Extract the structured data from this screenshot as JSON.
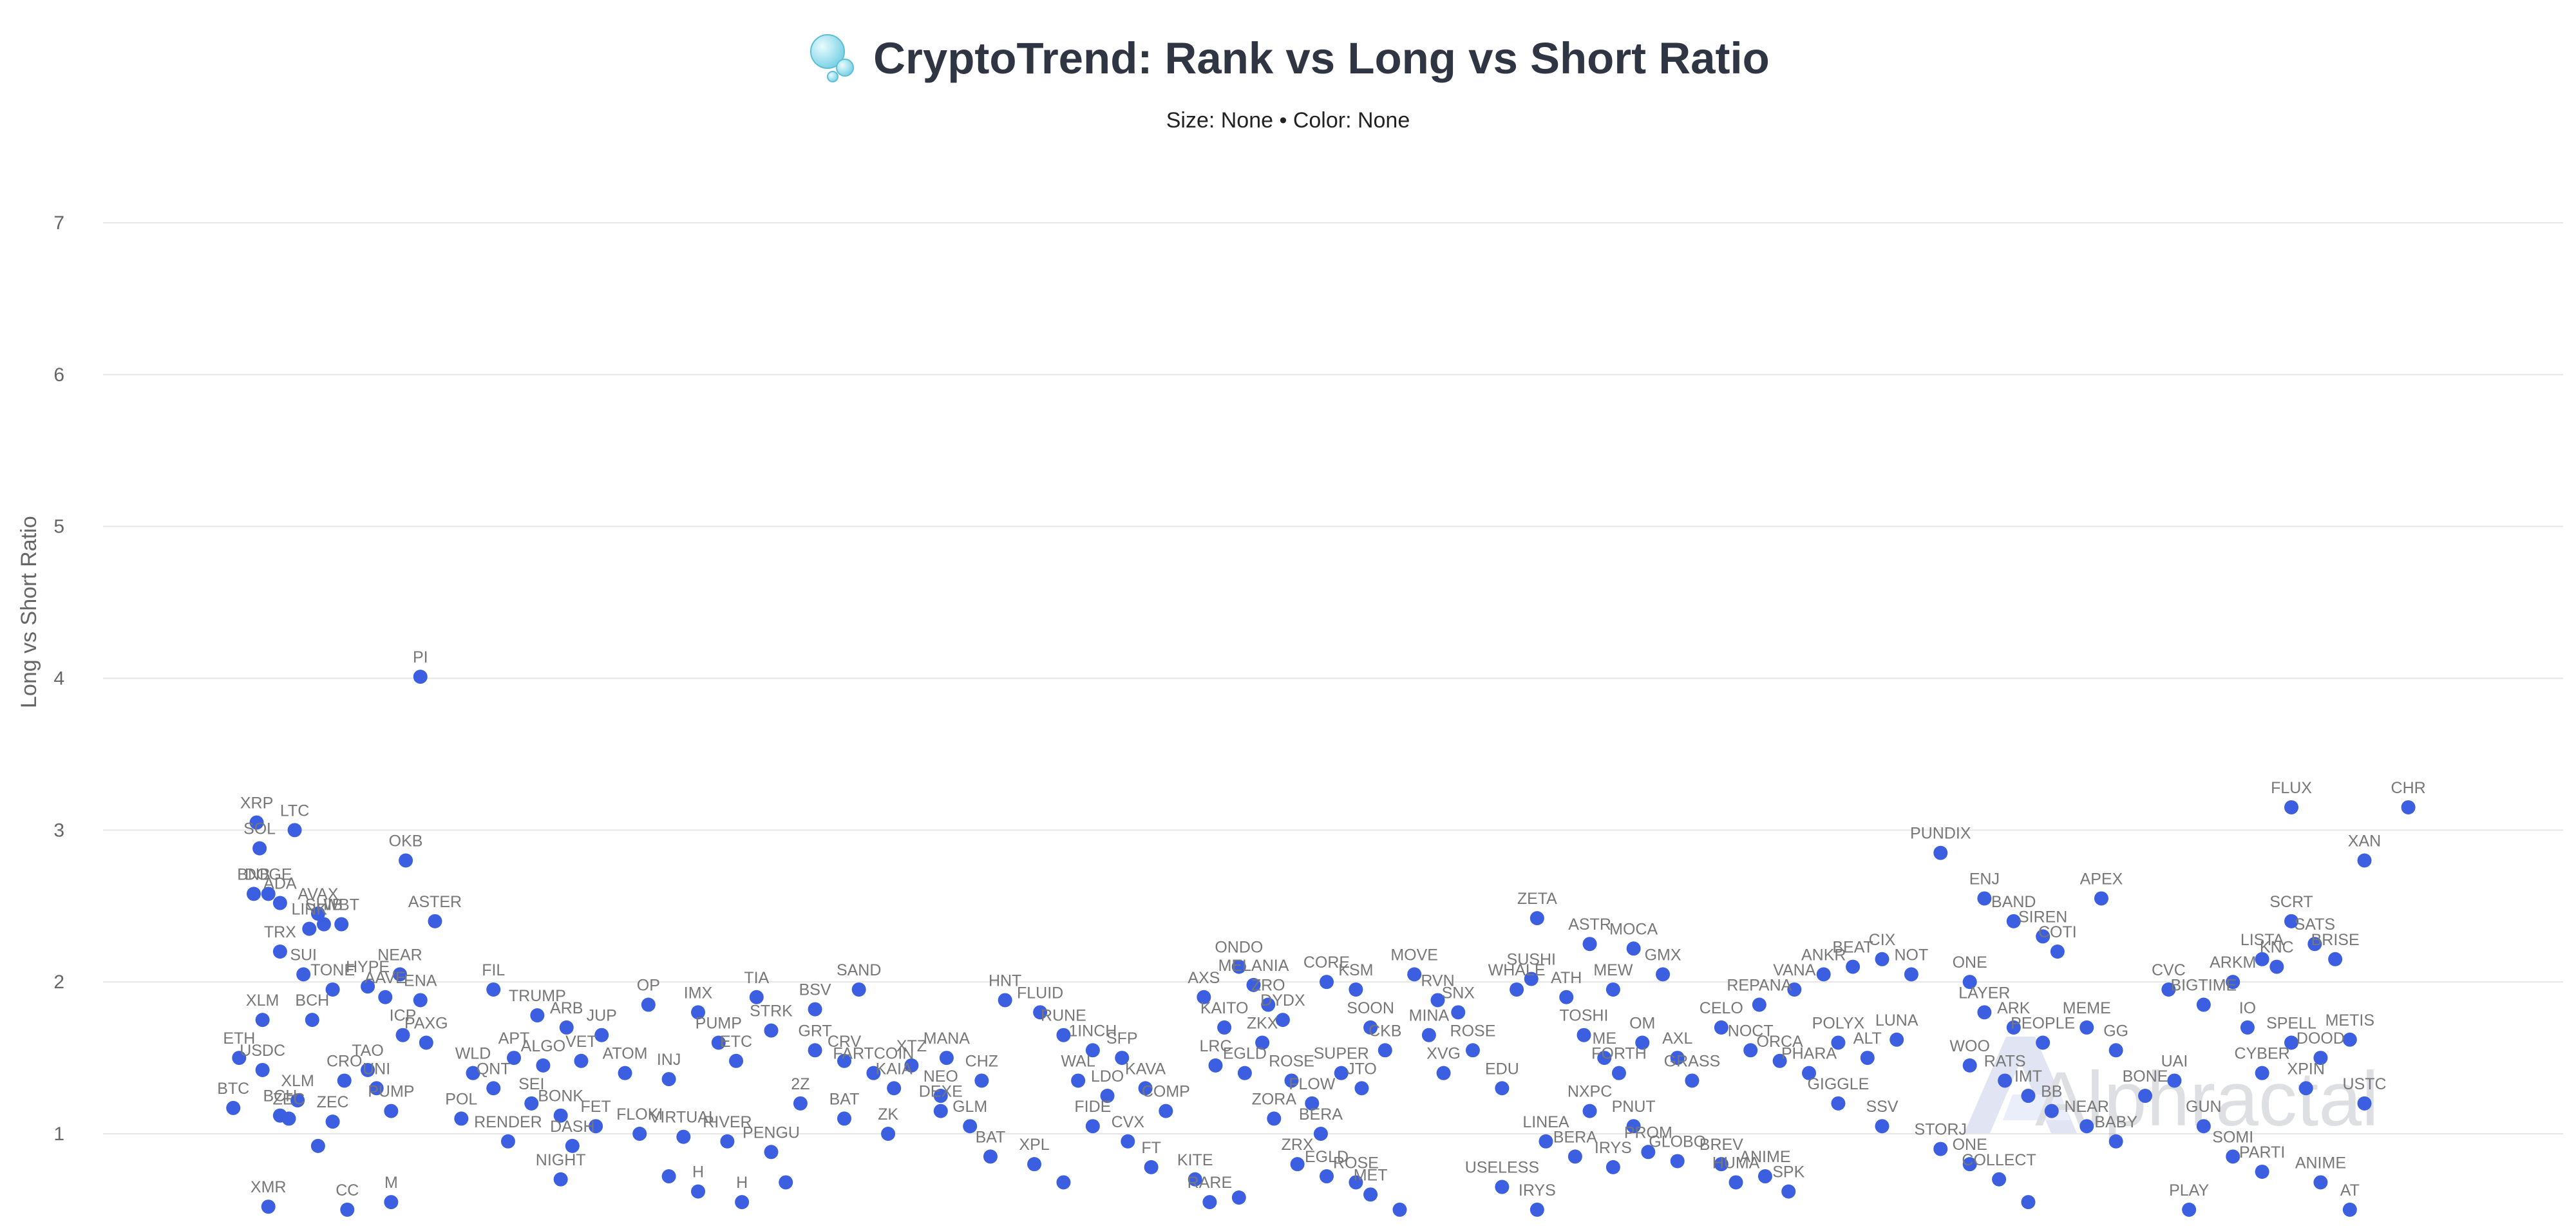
{
  "title": "CryptoTrend: Rank vs Long vs Short Ratio",
  "subtitle": "Size: None • Color: None",
  "watermark": "Alphractal",
  "colors": {
    "point": "#3b5fe0",
    "grid": "#e6e6e6",
    "title": "#2f3542",
    "bubble": "#7fd3e6"
  },
  "icons": {
    "title_icon": "bubbles-icon",
    "watermark_logo": "alphractal-logo"
  },
  "chart_data": {
    "type": "scatter",
    "title": "CryptoTrend: Rank vs Long vs Short Ratio",
    "subtitle": "Size: None • Color: None",
    "xlabel": "",
    "ylabel": "Long vs Short Ratio",
    "x_axis_visible": false,
    "xlim": [
      0,
      760
    ],
    "ylim": [
      0.4,
      7.5
    ],
    "yticks": [
      1,
      2,
      3,
      4,
      5,
      6,
      7
    ],
    "grid": true,
    "legend": "none",
    "points": [
      {
        "x": 14,
        "y": 3.05,
        "label": "XRP"
      },
      {
        "x": 15,
        "y": 2.88,
        "label": "SOL"
      },
      {
        "x": 13,
        "y": 2.58,
        "label": "BNB"
      },
      {
        "x": 18,
        "y": 2.58,
        "label": "DOGE"
      },
      {
        "x": 22,
        "y": 2.52,
        "label": "ADA"
      },
      {
        "x": 35,
        "y": 2.45,
        "label": "AVAX"
      },
      {
        "x": 27,
        "y": 3.0,
        "label": "LTC"
      },
      {
        "x": 37,
        "y": 2.38,
        "label": "SHIB"
      },
      {
        "x": 43,
        "y": 2.38,
        "label": "WBT"
      },
      {
        "x": 32,
        "y": 2.35,
        "label": "LINK"
      },
      {
        "x": 70,
        "y": 4.01,
        "label": "PI"
      },
      {
        "x": 65,
        "y": 2.8,
        "label": "OKB"
      },
      {
        "x": 75,
        "y": 2.4,
        "label": "ASTER"
      },
      {
        "x": 22,
        "y": 2.2,
        "label": "TRX"
      },
      {
        "x": 30,
        "y": 2.05,
        "label": "SUI"
      },
      {
        "x": 40,
        "y": 1.95,
        "label": "TONE"
      },
      {
        "x": 52,
        "y": 1.97,
        "label": "HYPE"
      },
      {
        "x": 63,
        "y": 2.05,
        "label": "NEAR"
      },
      {
        "x": 58,
        "y": 1.9,
        "label": "AAVE"
      },
      {
        "x": 70,
        "y": 1.88,
        "label": "ENA"
      },
      {
        "x": 16,
        "y": 1.75,
        "label": "XLM"
      },
      {
        "x": 33,
        "y": 1.75,
        "label": "BCH"
      },
      {
        "x": 64,
        "y": 1.65,
        "label": "ICP"
      },
      {
        "x": 72,
        "y": 1.6,
        "label": "PAXG"
      },
      {
        "x": 8,
        "y": 1.5,
        "label": "ETH"
      },
      {
        "x": 16,
        "y": 1.42,
        "label": "USDC"
      },
      {
        "x": 52,
        "y": 1.42,
        "label": "TAO"
      },
      {
        "x": 44,
        "y": 1.35,
        "label": "CRO"
      },
      {
        "x": 55,
        "y": 1.3,
        "label": "UNI"
      },
      {
        "x": 28,
        "y": 1.22,
        "label": "XLM"
      },
      {
        "x": 6,
        "y": 1.17,
        "label": "BTC"
      },
      {
        "x": 22,
        "y": 1.12,
        "label": "BCH"
      },
      {
        "x": 40,
        "y": 1.08,
        "label": "ZEC"
      },
      {
        "x": 60,
        "y": 1.15,
        "label": "PUMP"
      },
      {
        "x": 84,
        "y": 1.1,
        "label": "POL"
      },
      {
        "x": 25,
        "y": 1.1,
        "label": "ZEC"
      },
      {
        "x": 35,
        "y": 0.92,
        "label": ""
      },
      {
        "x": 18,
        "y": 0.52,
        "label": "XMR"
      },
      {
        "x": 45,
        "y": 0.5,
        "label": "CC"
      },
      {
        "x": 60,
        "y": 0.55,
        "label": "M"
      },
      {
        "x": 95,
        "y": 1.95,
        "label": "FIL"
      },
      {
        "x": 110,
        "y": 1.78,
        "label": "TRUMP"
      },
      {
        "x": 120,
        "y": 1.7,
        "label": "ARB"
      },
      {
        "x": 132,
        "y": 1.65,
        "label": "JUP"
      },
      {
        "x": 148,
        "y": 1.85,
        "label": "OP"
      },
      {
        "x": 165,
        "y": 1.8,
        "label": "IMX"
      },
      {
        "x": 185,
        "y": 1.9,
        "label": "TIA"
      },
      {
        "x": 190,
        "y": 1.68,
        "label": "STRK"
      },
      {
        "x": 172,
        "y": 1.6,
        "label": "PUMP"
      },
      {
        "x": 102,
        "y": 1.5,
        "label": "APT"
      },
      {
        "x": 112,
        "y": 1.45,
        "label": "ALGO"
      },
      {
        "x": 125,
        "y": 1.48,
        "label": "VET"
      },
      {
        "x": 140,
        "y": 1.4,
        "label": "ATOM"
      },
      {
        "x": 155,
        "y": 1.36,
        "label": "INJ"
      },
      {
        "x": 178,
        "y": 1.48,
        "label": "ETC"
      },
      {
        "x": 88,
        "y": 1.4,
        "label": "WLD"
      },
      {
        "x": 95,
        "y": 1.3,
        "label": "QNT"
      },
      {
        "x": 108,
        "y": 1.2,
        "label": "SEI"
      },
      {
        "x": 118,
        "y": 1.12,
        "label": "BONK"
      },
      {
        "x": 130,
        "y": 1.05,
        "label": "FET"
      },
      {
        "x": 145,
        "y": 1.0,
        "label": "FLOKI"
      },
      {
        "x": 160,
        "y": 0.98,
        "label": "VIRTUAL"
      },
      {
        "x": 175,
        "y": 0.95,
        "label": "RIVER"
      },
      {
        "x": 190,
        "y": 0.88,
        "label": "PENGU"
      },
      {
        "x": 100,
        "y": 0.95,
        "label": "RENDER"
      },
      {
        "x": 122,
        "y": 0.92,
        "label": "DASH"
      },
      {
        "x": 118,
        "y": 0.7,
        "label": "NIGHT"
      },
      {
        "x": 155,
        "y": 0.72,
        "label": ""
      },
      {
        "x": 165,
        "y": 0.62,
        "label": "H"
      },
      {
        "x": 180,
        "y": 0.55,
        "label": "H"
      },
      {
        "x": 195,
        "y": 0.68,
        "label": ""
      },
      {
        "x": 220,
        "y": 1.95,
        "label": "SAND"
      },
      {
        "x": 205,
        "y": 1.82,
        "label": "BSV"
      },
      {
        "x": 205,
        "y": 1.55,
        "label": "GRT"
      },
      {
        "x": 215,
        "y": 1.48,
        "label": "CRV"
      },
      {
        "x": 225,
        "y": 1.4,
        "label": "FARTCOIN"
      },
      {
        "x": 238,
        "y": 1.45,
        "label": "XTZ"
      },
      {
        "x": 250,
        "y": 1.5,
        "label": "MANA"
      },
      {
        "x": 232,
        "y": 1.3,
        "label": "KAIA"
      },
      {
        "x": 248,
        "y": 1.25,
        "label": "NEO"
      },
      {
        "x": 262,
        "y": 1.35,
        "label": "CHZ"
      },
      {
        "x": 200,
        "y": 1.2,
        "label": "2Z"
      },
      {
        "x": 215,
        "y": 1.1,
        "label": "BAT"
      },
      {
        "x": 230,
        "y": 1.0,
        "label": "ZK"
      },
      {
        "x": 248,
        "y": 1.15,
        "label": "DEXE"
      },
      {
        "x": 258,
        "y": 1.05,
        "label": "GLM"
      },
      {
        "x": 265,
        "y": 0.85,
        "label": "BAT"
      },
      {
        "x": 280,
        "y": 0.8,
        "label": "XPL"
      },
      {
        "x": 290,
        "y": 0.68,
        "label": ""
      },
      {
        "x": 270,
        "y": 1.88,
        "label": "HNT"
      },
      {
        "x": 282,
        "y": 1.8,
        "label": "FLUID"
      },
      {
        "x": 290,
        "y": 1.65,
        "label": "RUNE"
      },
      {
        "x": 300,
        "y": 1.55,
        "label": "1INCH"
      },
      {
        "x": 310,
        "y": 1.5,
        "label": "SFP"
      },
      {
        "x": 295,
        "y": 1.35,
        "label": "WAL"
      },
      {
        "x": 305,
        "y": 1.25,
        "label": "LDO"
      },
      {
        "x": 318,
        "y": 1.3,
        "label": "KAVA"
      },
      {
        "x": 325,
        "y": 1.15,
        "label": "COMP"
      },
      {
        "x": 300,
        "y": 1.05,
        "label": "FIDE"
      },
      {
        "x": 312,
        "y": 0.95,
        "label": "CVX"
      },
      {
        "x": 320,
        "y": 0.78,
        "label": "FT"
      },
      {
        "x": 335,
        "y": 0.7,
        "label": "KITE"
      },
      {
        "x": 340,
        "y": 0.55,
        "label": "RARE"
      },
      {
        "x": 350,
        "y": 0.58,
        "label": ""
      },
      {
        "x": 338,
        "y": 1.9,
        "label": "AXS"
      },
      {
        "x": 350,
        "y": 2.1,
        "label": "ONDO"
      },
      {
        "x": 355,
        "y": 1.98,
        "label": "MELANIA"
      },
      {
        "x": 360,
        "y": 1.85,
        "label": "ZRO"
      },
      {
        "x": 345,
        "y": 1.7,
        "label": "KAITO"
      },
      {
        "x": 365,
        "y": 1.75,
        "label": "DYDX"
      },
      {
        "x": 358,
        "y": 1.6,
        "label": "ZKX"
      },
      {
        "x": 342,
        "y": 1.45,
        "label": "LRC"
      },
      {
        "x": 352,
        "y": 1.4,
        "label": "EGLD"
      },
      {
        "x": 368,
        "y": 1.35,
        "label": "ROSE"
      },
      {
        "x": 375,
        "y": 1.2,
        "label": "FLOW"
      },
      {
        "x": 362,
        "y": 1.1,
        "label": "ZORA"
      },
      {
        "x": 378,
        "y": 1.0,
        "label": "BERA"
      },
      {
        "x": 380,
        "y": 2.0,
        "label": "CORE"
      },
      {
        "x": 390,
        "y": 1.95,
        "label": "KSM"
      },
      {
        "x": 395,
        "y": 1.7,
        "label": "SOON"
      },
      {
        "x": 400,
        "y": 1.55,
        "label": "CKB"
      },
      {
        "x": 385,
        "y": 1.4,
        "label": "SUPER"
      },
      {
        "x": 392,
        "y": 1.3,
        "label": "JTO"
      },
      {
        "x": 370,
        "y": 0.8,
        "label": "ZRX"
      },
      {
        "x": 380,
        "y": 0.72,
        "label": "EGLD"
      },
      {
        "x": 390,
        "y": 0.68,
        "label": "ROSE"
      },
      {
        "x": 395,
        "y": 0.6,
        "label": "MET"
      },
      {
        "x": 405,
        "y": 0.5,
        "label": ""
      },
      {
        "x": 410,
        "y": 2.05,
        "label": "MOVE"
      },
      {
        "x": 418,
        "y": 1.88,
        "label": "RVN"
      },
      {
        "x": 425,
        "y": 1.8,
        "label": "SNX"
      },
      {
        "x": 415,
        "y": 1.65,
        "label": "MINA"
      },
      {
        "x": 430,
        "y": 1.55,
        "label": "ROSE"
      },
      {
        "x": 420,
        "y": 1.4,
        "label": "XVG"
      },
      {
        "x": 440,
        "y": 1.3,
        "label": "EDU"
      },
      {
        "x": 445,
        "y": 1.95,
        "label": "WHALE"
      },
      {
        "x": 450,
        "y": 2.02,
        "label": "SUSHI"
      },
      {
        "x": 462,
        "y": 1.9,
        "label": "ATH"
      },
      {
        "x": 468,
        "y": 1.65,
        "label": "TOSHI"
      },
      {
        "x": 475,
        "y": 1.5,
        "label": "ME"
      },
      {
        "x": 452,
        "y": 2.42,
        "label": "ZETA"
      },
      {
        "x": 470,
        "y": 2.25,
        "label": "ASTR"
      },
      {
        "x": 485,
        "y": 2.22,
        "label": "MOCA"
      },
      {
        "x": 495,
        "y": 2.05,
        "label": "GMX"
      },
      {
        "x": 478,
        "y": 1.95,
        "label": "MEW"
      },
      {
        "x": 488,
        "y": 1.6,
        "label": "OM"
      },
      {
        "x": 500,
        "y": 1.5,
        "label": "AXL"
      },
      {
        "x": 480,
        "y": 1.4,
        "label": "FORTH"
      },
      {
        "x": 505,
        "y": 1.35,
        "label": "GRASS"
      },
      {
        "x": 470,
        "y": 1.15,
        "label": "NXPC"
      },
      {
        "x": 485,
        "y": 1.05,
        "label": "PNUT"
      },
      {
        "x": 455,
        "y": 0.95,
        "label": "LINEA"
      },
      {
        "x": 465,
        "y": 0.85,
        "label": "BERA"
      },
      {
        "x": 478,
        "y": 0.78,
        "label": "IRYS"
      },
      {
        "x": 490,
        "y": 0.88,
        "label": "PROM"
      },
      {
        "x": 500,
        "y": 0.82,
        "label": "GLOBO"
      },
      {
        "x": 440,
        "y": 0.65,
        "label": "USELESS"
      },
      {
        "x": 452,
        "y": 0.5,
        "label": "IRYS"
      },
      {
        "x": 515,
        "y": 0.8,
        "label": "BREV"
      },
      {
        "x": 520,
        "y": 0.68,
        "label": "HUMA"
      },
      {
        "x": 530,
        "y": 0.72,
        "label": "ANIME"
      },
      {
        "x": 538,
        "y": 0.62,
        "label": "SPK"
      },
      {
        "x": 525,
        "y": 1.55,
        "label": "NOCT"
      },
      {
        "x": 535,
        "y": 1.48,
        "label": "ORCA"
      },
      {
        "x": 545,
        "y": 1.4,
        "label": "PHARA"
      },
      {
        "x": 555,
        "y": 1.6,
        "label": "POLYX"
      },
      {
        "x": 565,
        "y": 1.5,
        "label": "ALT"
      },
      {
        "x": 575,
        "y": 1.62,
        "label": "LUNA"
      },
      {
        "x": 515,
        "y": 1.7,
        "label": "CELO"
      },
      {
        "x": 528,
        "y": 1.85,
        "label": "REPANA"
      },
      {
        "x": 540,
        "y": 1.95,
        "label": "VANA"
      },
      {
        "x": 550,
        "y": 2.05,
        "label": "ANKR"
      },
      {
        "x": 560,
        "y": 2.1,
        "label": "BEAT"
      },
      {
        "x": 570,
        "y": 2.15,
        "label": "CIX"
      },
      {
        "x": 580,
        "y": 2.05,
        "label": "NOT"
      },
      {
        "x": 555,
        "y": 1.2,
        "label": "GIGGLE"
      },
      {
        "x": 570,
        "y": 1.05,
        "label": "SSV"
      },
      {
        "x": 590,
        "y": 0.9,
        "label": "STORJ"
      },
      {
        "x": 600,
        "y": 0.8,
        "label": "ONE"
      },
      {
        "x": 610,
        "y": 0.7,
        "label": "COLLECT"
      },
      {
        "x": 620,
        "y": 0.55,
        "label": ""
      },
      {
        "x": 590,
        "y": 2.85,
        "label": "PUNDIX"
      },
      {
        "x": 605,
        "y": 2.55,
        "label": "ENJ"
      },
      {
        "x": 615,
        "y": 2.4,
        "label": "BAND"
      },
      {
        "x": 625,
        "y": 2.3,
        "label": "SIREN"
      },
      {
        "x": 630,
        "y": 2.2,
        "label": "COTI"
      },
      {
        "x": 645,
        "y": 2.55,
        "label": "APEX"
      },
      {
        "x": 600,
        "y": 2.0,
        "label": "ONE"
      },
      {
        "x": 605,
        "y": 1.8,
        "label": "LAYER"
      },
      {
        "x": 615,
        "y": 1.7,
        "label": "ARK"
      },
      {
        "x": 625,
        "y": 1.6,
        "label": "PEOPLE"
      },
      {
        "x": 640,
        "y": 1.7,
        "label": "MEME"
      },
      {
        "x": 650,
        "y": 1.55,
        "label": "GG"
      },
      {
        "x": 600,
        "y": 1.45,
        "label": "WOO"
      },
      {
        "x": 612,
        "y": 1.35,
        "label": "RATS"
      },
      {
        "x": 620,
        "y": 1.25,
        "label": "IMT"
      },
      {
        "x": 628,
        "y": 1.15,
        "label": "BB"
      },
      {
        "x": 640,
        "y": 1.05,
        "label": "NEAR"
      },
      {
        "x": 650,
        "y": 0.95,
        "label": "BABY"
      },
      {
        "x": 660,
        "y": 1.25,
        "label": "BONE"
      },
      {
        "x": 670,
        "y": 1.35,
        "label": "UAI"
      },
      {
        "x": 680,
        "y": 1.05,
        "label": "GUN"
      },
      {
        "x": 690,
        "y": 0.85,
        "label": "SOMI"
      },
      {
        "x": 700,
        "y": 0.75,
        "label": "PARTI"
      },
      {
        "x": 675,
        "y": 0.5,
        "label": "PLAY"
      },
      {
        "x": 720,
        "y": 0.68,
        "label": "ANIME"
      },
      {
        "x": 730,
        "y": 0.5,
        "label": "AT"
      },
      {
        "x": 668,
        "y": 1.95,
        "label": "CVC"
      },
      {
        "x": 680,
        "y": 1.85,
        "label": "BIGTIME"
      },
      {
        "x": 690,
        "y": 2.0,
        "label": "ARKM"
      },
      {
        "x": 700,
        "y": 2.15,
        "label": "LISTA"
      },
      {
        "x": 710,
        "y": 2.4,
        "label": "SCRT"
      },
      {
        "x": 718,
        "y": 2.25,
        "label": "SATS"
      },
      {
        "x": 725,
        "y": 2.15,
        "label": "BRISE"
      },
      {
        "x": 705,
        "y": 2.1,
        "label": "KNC"
      },
      {
        "x": 695,
        "y": 1.7,
        "label": "IO"
      },
      {
        "x": 710,
        "y": 1.6,
        "label": "SPELL"
      },
      {
        "x": 720,
        "y": 1.5,
        "label": "DOOD"
      },
      {
        "x": 730,
        "y": 1.62,
        "label": "METIS"
      },
      {
        "x": 700,
        "y": 1.4,
        "label": "CYBER"
      },
      {
        "x": 715,
        "y": 1.3,
        "label": "XPIN"
      },
      {
        "x": 735,
        "y": 1.2,
        "label": "USTC"
      },
      {
        "x": 710,
        "y": 3.15,
        "label": "FLUX"
      },
      {
        "x": 735,
        "y": 2.8,
        "label": "XAN"
      },
      {
        "x": 750,
        "y": 3.15,
        "label": "CHR"
      }
    ]
  }
}
